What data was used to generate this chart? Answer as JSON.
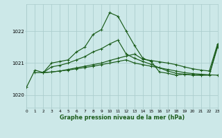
{
  "title": "Graphe pression niveau de la mer (hPa)",
  "bg_color": "#cce8e8",
  "grid_color": "#aacccc",
  "line_color": "#1a5c1a",
  "xlim": [
    0,
    23
  ],
  "ylim": [
    1019.6,
    1022.85
  ],
  "yticks": [
    1020,
    1021,
    1022
  ],
  "xticks": [
    0,
    1,
    2,
    3,
    4,
    5,
    6,
    7,
    8,
    9,
    10,
    11,
    12,
    13,
    14,
    15,
    16,
    17,
    18,
    19,
    20,
    21,
    22,
    23
  ],
  "s1_x": [
    0,
    1,
    2,
    3,
    4,
    5,
    6,
    7,
    8,
    9,
    10,
    11,
    12,
    13,
    14,
    15,
    16,
    17,
    18,
    19,
    20,
    21,
    22,
    23
  ],
  "s1_y": [
    1020.25,
    1020.78,
    1020.7,
    1021.0,
    1021.05,
    1021.1,
    1021.35,
    1021.5,
    1021.9,
    1022.05,
    1022.58,
    1022.47,
    1022.0,
    1021.55,
    1021.15,
    1021.05,
    1020.72,
    1020.68,
    1020.62,
    1020.65,
    1020.62,
    1020.62,
    1020.62,
    1021.5
  ],
  "s2_x": [
    1,
    2,
    3,
    4,
    5,
    6,
    7,
    8,
    9,
    10,
    11,
    12,
    13,
    14,
    15,
    16,
    17,
    18,
    19,
    20,
    21,
    22,
    23
  ],
  "s2_y": [
    1020.7,
    1020.7,
    1020.88,
    1020.93,
    1021.0,
    1021.1,
    1021.2,
    1021.35,
    1021.45,
    1021.6,
    1021.72,
    1021.28,
    1021.15,
    1021.05,
    1020.96,
    1020.85,
    1020.75,
    1020.68,
    1020.65,
    1020.63,
    1020.62,
    1020.63,
    1021.55
  ],
  "s3_x": [
    2,
    3,
    4,
    5,
    6,
    7,
    8,
    9,
    10,
    11,
    12,
    13,
    14,
    15,
    16,
    17,
    18,
    19,
    20,
    21,
    22,
    23
  ],
  "s3_y": [
    1020.7,
    1020.72,
    1020.75,
    1020.8,
    1020.85,
    1020.9,
    1020.95,
    1021.0,
    1021.08,
    1021.15,
    1021.22,
    1021.28,
    1021.12,
    1021.08,
    1021.04,
    1021.0,
    1020.95,
    1020.88,
    1020.82,
    1020.78,
    1020.75,
    1021.6
  ],
  "s4_x": [
    2,
    3,
    4,
    5,
    6,
    7,
    8,
    9,
    10,
    11,
    12,
    13,
    14,
    15,
    16,
    17,
    18,
    19,
    20,
    21,
    22,
    23
  ],
  "s4_y": [
    1020.7,
    1020.72,
    1020.75,
    1020.78,
    1020.82,
    1020.86,
    1020.9,
    1020.95,
    1021.0,
    1021.05,
    1021.1,
    1021.0,
    1020.95,
    1020.9,
    1020.85,
    1020.8,
    1020.75,
    1020.7,
    1020.67,
    1020.65,
    1020.63,
    1020.62
  ]
}
